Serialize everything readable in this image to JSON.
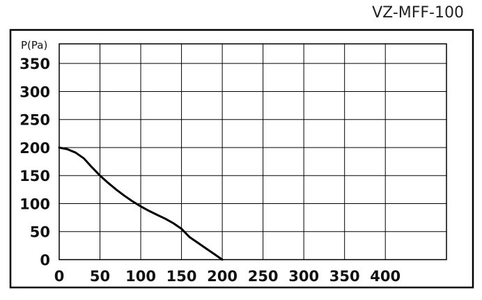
{
  "chart_data": {
    "type": "line",
    "title": "VZ-MFF-100",
    "ylabel": "P(Pa)",
    "xlabel": "",
    "xlim": [
      0,
      475
    ],
    "ylim": [
      0,
      385
    ],
    "x_ticks": [
      0,
      50,
      100,
      150,
      200,
      250,
      300,
      350,
      400
    ],
    "y_ticks": [
      0,
      50,
      100,
      150,
      200,
      250,
      300,
      350
    ],
    "x_tick_labels": [
      "0",
      "50",
      "100",
      "150",
      "200",
      "250",
      "300",
      "350",
      "400"
    ],
    "y_tick_labels": [
      "0",
      "50",
      "100",
      "150",
      "200",
      "250",
      "300",
      "350"
    ],
    "grid": true,
    "series": [
      {
        "x": [
          0,
          10,
          20,
          30,
          40,
          50,
          60,
          70,
          80,
          90,
          100,
          110,
          120,
          130,
          140,
          150,
          160,
          170,
          180,
          190,
          200
        ],
        "y": [
          200,
          197,
          191,
          181,
          165,
          150,
          137,
          125,
          114,
          104,
          95,
          87,
          80,
          73,
          65,
          55,
          40,
          30,
          20,
          10,
          0
        ]
      }
    ],
    "colors": {
      "line": "#000000",
      "grid": "#000000",
      "frame": "#000000"
    }
  }
}
